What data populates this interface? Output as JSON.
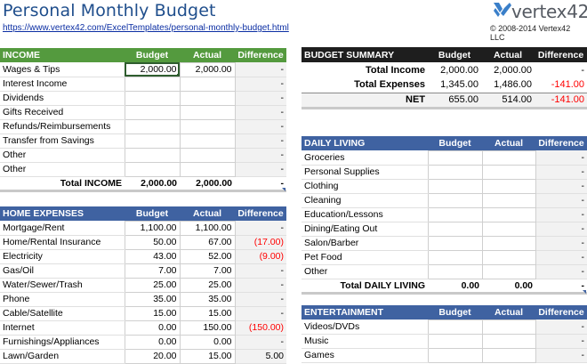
{
  "header": {
    "title": "Personal Monthly Budget",
    "url": "https://www.vertex42.com/ExcelTemplates/personal-monthly-budget.html",
    "logo": "vertex42",
    "copyright": "© 2008-2014 Vertex42 LLC"
  },
  "income": {
    "header": [
      "INCOME",
      "Budget",
      "Actual",
      "Difference"
    ],
    "rows": [
      [
        "Wages & Tips",
        "2,000.00",
        "2,000.00",
        "-"
      ],
      [
        "Interest Income",
        "",
        "",
        "-"
      ],
      [
        "Dividends",
        "",
        "",
        "-"
      ],
      [
        "Gifts Received",
        "",
        "",
        "-"
      ],
      [
        "Refunds/Reimbursements",
        "",
        "",
        "-"
      ],
      [
        "Transfer from Savings",
        "",
        "",
        "-"
      ],
      [
        "Other",
        "",
        "",
        "-"
      ],
      [
        "Other",
        "",
        "",
        "-"
      ]
    ],
    "total": [
      "Total INCOME",
      "2,000.00",
      "2,000.00",
      "-"
    ]
  },
  "home": {
    "header": [
      "HOME EXPENSES",
      "Budget",
      "Actual",
      "Difference"
    ],
    "rows": [
      [
        "Mortgage/Rent",
        "1,100.00",
        "1,100.00",
        "-"
      ],
      [
        "Home/Rental Insurance",
        "50.00",
        "67.00",
        "(17.00)"
      ],
      [
        "Electricity",
        "43.00",
        "52.00",
        "(9.00)"
      ],
      [
        "Gas/Oil",
        "7.00",
        "7.00",
        "-"
      ],
      [
        "Water/Sewer/Trash",
        "25.00",
        "25.00",
        "-"
      ],
      [
        "Phone",
        "35.00",
        "35.00",
        "-"
      ],
      [
        "Cable/Satellite",
        "15.00",
        "15.00",
        "-"
      ],
      [
        "Internet",
        "0.00",
        "150.00",
        "(150.00)"
      ],
      [
        "Furnishings/Appliances",
        "0.00",
        "0.00",
        "-"
      ],
      [
        "Lawn/Garden",
        "20.00",
        "15.00",
        "5.00"
      ]
    ]
  },
  "summary": {
    "header": [
      "BUDGET SUMMARY",
      "Budget",
      "Actual",
      "Difference"
    ],
    "rows": [
      [
        "Total Income",
        "2,000.00",
        "2,000.00",
        "-"
      ],
      [
        "Total Expenses",
        "1,345.00",
        "1,486.00",
        "-141.00"
      ]
    ],
    "net": [
      "NET",
      "655.00",
      "514.00",
      "-141.00"
    ]
  },
  "daily": {
    "header": [
      "DAILY LIVING",
      "Budget",
      "Actual",
      "Difference"
    ],
    "rows": [
      [
        "Groceries",
        "",
        "",
        "-"
      ],
      [
        "Personal Supplies",
        "",
        "",
        "-"
      ],
      [
        "Clothing",
        "",
        "",
        "-"
      ],
      [
        "Cleaning",
        "",
        "",
        "-"
      ],
      [
        "Education/Lessons",
        "",
        "",
        "-"
      ],
      [
        "Dining/Eating Out",
        "",
        "",
        "-"
      ],
      [
        "Salon/Barber",
        "",
        "",
        "-"
      ],
      [
        "Pet Food",
        "",
        "",
        "-"
      ],
      [
        "Other",
        "",
        "",
        "-"
      ]
    ],
    "total": [
      "Total DAILY LIVING",
      "0.00",
      "0.00",
      "-"
    ]
  },
  "entertainment": {
    "header": [
      "ENTERTAINMENT",
      "Budget",
      "Actual",
      "Difference"
    ],
    "rows": [
      [
        "Videos/DVDs",
        "",
        "",
        "-"
      ],
      [
        "Music",
        "",
        "",
        "-"
      ],
      [
        "Games",
        "",
        "",
        "-"
      ]
    ]
  },
  "colors": {
    "green_header": "#549a3e",
    "blue_header": "#3f62a1",
    "black_header": "#1e1e1e",
    "negative": "#ff0000",
    "title": "#1f4e8c"
  }
}
